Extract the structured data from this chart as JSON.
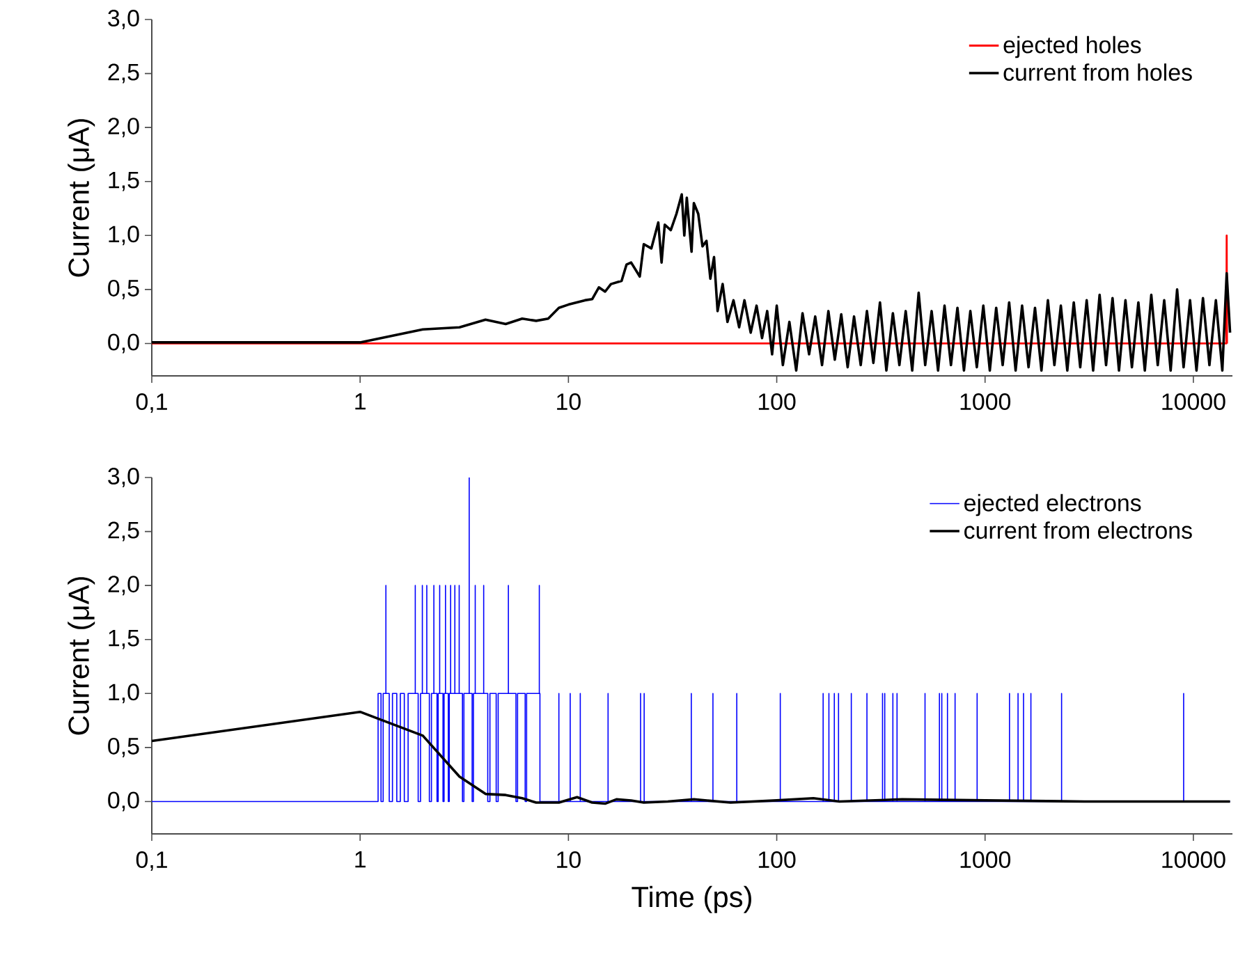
{
  "chart_data": [
    {
      "type": "line",
      "ylabel": "Current (μA)",
      "xlim": [
        0.1,
        15400
      ],
      "ylim": [
        -0.3,
        3.0
      ],
      "log": "x",
      "legend": "top right",
      "line_style": "solid",
      "xticks": [
        {
          "value": 0.1,
          "label": "0,1"
        },
        1,
        10,
        100,
        1000,
        10000
      ],
      "yticks": [
        {
          "value": 0,
          "label": "0,0"
        },
        {
          "value": 0.5,
          "label": "0,5"
        },
        {
          "value": 1,
          "label": "1,0"
        },
        {
          "value": 1.5,
          "label": "1,5"
        },
        {
          "value": 2,
          "label": "2,0"
        },
        {
          "value": 2.5,
          "label": "2,5"
        },
        {
          "value": 3,
          "label": "3,0"
        }
      ],
      "series": [
        {
          "name": "ejected holes",
          "color": "#ff0000",
          "x": [
            0.1,
            14400,
            14450,
            14500
          ],
          "values": [
            0,
            0,
            1.0,
            0
          ]
        },
        {
          "name": "current from holes",
          "color": "#000000",
          "x": [
            0.1,
            1,
            2,
            3,
            4,
            5,
            6,
            7,
            8,
            9,
            10,
            12,
            13,
            14,
            15,
            16,
            18,
            19,
            20,
            22,
            23,
            25,
            27,
            28,
            29,
            31,
            33,
            35,
            36,
            37,
            39,
            40,
            42,
            44,
            46,
            48,
            50,
            52,
            55,
            58,
            62,
            66,
            70,
            75,
            80,
            85,
            90,
            95,
            100,
            107,
            115,
            124,
            133,
            143,
            153,
            165,
            177,
            190,
            204,
            219,
            235,
            253,
            271,
            291,
            313,
            336,
            361,
            388,
            416,
            447,
            480,
            516,
            554,
            595,
            639,
            686,
            737,
            792,
            850,
            913,
            981,
            1054,
            1131,
            1215,
            1305,
            1402,
            1506,
            1617,
            1737,
            1865,
            2003,
            2152,
            2311,
            2482,
            2666,
            2863,
            3075,
            3303,
            3547,
            3810,
            4092,
            4394,
            4720,
            5069,
            5444,
            5847,
            6280,
            6745,
            7244,
            7780,
            8355,
            8974,
            9638,
            10351,
            11117,
            11940,
            12823,
            13772,
            14450,
            15000
          ],
          "values": [
            0.01,
            0.01,
            0.13,
            0.15,
            0.22,
            0.18,
            0.23,
            0.21,
            0.23,
            0.33,
            0.36,
            0.4,
            0.41,
            0.52,
            0.48,
            0.55,
            0.58,
            0.73,
            0.75,
            0.62,
            0.92,
            0.88,
            1.12,
            0.75,
            1.1,
            1.05,
            1.2,
            1.38,
            1.0,
            1.35,
            0.85,
            1.3,
            1.2,
            0.9,
            0.95,
            0.6,
            0.8,
            0.3,
            0.55,
            0.2,
            0.4,
            0.15,
            0.4,
            0.1,
            0.35,
            0.05,
            0.3,
            -0.1,
            0.35,
            -0.2,
            0.2,
            -0.25,
            0.28,
            -0.1,
            0.25,
            -0.2,
            0.3,
            -0.15,
            0.27,
            -0.22,
            0.25,
            -0.2,
            0.3,
            -0.18,
            0.38,
            -0.25,
            0.28,
            -0.2,
            0.3,
            -0.25,
            0.47,
            -0.2,
            0.3,
            -0.25,
            0.35,
            -0.2,
            0.33,
            -0.25,
            0.3,
            -0.22,
            0.35,
            -0.25,
            0.33,
            -0.2,
            0.38,
            -0.25,
            0.35,
            -0.22,
            0.33,
            -0.25,
            0.4,
            -0.2,
            0.35,
            -0.25,
            0.38,
            -0.22,
            0.4,
            -0.25,
            0.45,
            -0.2,
            0.42,
            -0.25,
            0.4,
            -0.22,
            0.38,
            -0.25,
            0.45,
            -0.2,
            0.4,
            -0.25,
            0.5,
            -0.22,
            0.4,
            -0.25,
            0.42,
            -0.2,
            0.4,
            -0.25,
            0.65,
            0.1
          ]
        }
      ]
    },
    {
      "type": "line",
      "ylabel": "Current (μA)",
      "xlabel": "Time (ps)",
      "xlim": [
        0.1,
        15400
      ],
      "ylim": [
        -0.3,
        3.0
      ],
      "log": "x",
      "legend": "top right",
      "line_style": "solid",
      "xticks": [
        {
          "value": 0.1,
          "label": "0,1"
        },
        1,
        10,
        100,
        1000,
        10000
      ],
      "yticks": [
        {
          "value": 0,
          "label": "0,0"
        },
        {
          "value": 0.5,
          "label": "0,5"
        },
        {
          "value": 1,
          "label": "1,0"
        },
        {
          "value": 1.5,
          "label": "1,5"
        },
        {
          "value": 2,
          "label": "2,0"
        },
        {
          "value": 2.5,
          "label": "2,5"
        },
        {
          "value": 3,
          "label": "3,0"
        }
      ],
      "series": [
        {
          "name": "ejected electrons",
          "color": "#0000ff",
          "x": [
            0.1,
            1.22,
            1.22,
            1.26,
            1.26,
            1.29,
            1.29,
            1.33,
            1.33,
            1.33,
            1.38,
            1.38,
            1.43,
            1.43,
            1.5,
            1.5,
            1.56,
            1.56,
            1.63,
            1.63,
            1.7,
            1.7,
            1.84,
            1.84,
            1.84,
            1.9,
            1.9,
            1.95,
            1.95,
            1.99,
            1.99,
            1.99,
            2.09,
            2.09,
            2.09,
            2.15,
            2.15,
            2.2,
            2.2,
            2.26,
            2.26,
            2.26,
            2.34,
            2.34,
            2.37,
            2.37,
            2.41,
            2.41,
            2.41,
            2.5,
            2.5,
            2.53,
            2.53,
            2.57,
            2.57,
            2.57,
            2.65,
            2.65,
            2.68,
            2.68,
            2.72,
            2.72,
            2.72,
            2.85,
            2.85,
            2.85,
            2.99,
            2.99,
            2.99,
            3.1,
            3.1,
            3.15,
            3.15,
            3.34,
            3.34,
            3.34,
            3.45,
            3.45,
            3.5,
            3.5,
            3.57,
            3.57,
            3.57,
            3.92,
            3.92,
            3.92,
            4.1,
            4.1,
            4.2,
            4.2,
            4.5,
            4.5,
            4.6,
            4.6,
            5.15,
            5.15,
            5.15,
            5.6,
            5.6,
            5.7,
            5.7,
            6.2,
            6.2,
            6.3,
            6.3,
            7.25,
            7.25,
            7.25,
            7.3,
            7.3,
            9.0,
            9.0,
            9.0,
            10.2,
            10.2,
            10.2,
            11.4,
            11.4,
            11.4,
            15.5,
            15.5,
            15.5,
            22.2,
            22.2,
            22.2,
            23.1,
            23.1,
            23.1,
            38.9,
            38.9,
            38.9,
            49.4,
            49.4,
            49.4,
            64.3,
            64.3,
            64.3,
            104,
            104,
            104,
            167,
            167,
            167,
            178,
            178,
            178,
            189,
            189,
            189,
            198,
            198,
            198,
            228,
            228,
            228,
            271,
            271,
            271,
            322,
            322,
            322,
            330,
            330,
            330,
            361,
            361,
            361,
            378,
            378,
            378,
            515,
            515,
            515,
            604,
            604,
            604,
            620,
            620,
            620,
            660,
            660,
            660,
            718,
            718,
            718,
            916,
            916,
            916,
            1310,
            1310,
            1310,
            1440,
            1440,
            1440,
            1530,
            1530,
            1530,
            1660,
            1660,
            1660,
            2330,
            2330,
            2330,
            8980,
            8980,
            8980,
            15000
          ],
          "values": [
            0,
            0,
            1,
            1,
            0,
            0,
            1,
            1,
            2,
            1,
            1,
            0,
            0,
            1,
            1,
            0,
            0,
            1,
            1,
            0,
            0,
            1,
            1,
            2,
            1,
            1,
            0,
            0,
            1,
            1,
            2,
            1,
            1,
            2,
            1,
            1,
            0,
            0,
            1,
            1,
            2,
            1,
            1,
            0,
            0,
            1,
            1,
            2,
            1,
            1,
            0,
            0,
            1,
            1,
            2,
            1,
            1,
            0,
            0,
            1,
            1,
            2,
            1,
            1,
            2,
            1,
            1,
            2,
            1,
            1,
            0,
            0,
            1,
            1,
            3,
            1,
            1,
            0,
            0,
            1,
            1,
            2,
            1,
            1,
            2,
            1,
            1,
            0,
            0,
            1,
            1,
            0,
            0,
            1,
            1,
            2,
            1,
            1,
            0,
            0,
            1,
            1,
            0,
            0,
            1,
            1,
            2,
            1,
            1,
            0,
            0,
            1,
            0,
            0,
            1,
            0,
            0,
            1,
            0,
            0,
            1,
            0,
            0,
            1,
            0,
            0,
            1,
            0,
            0,
            1,
            0,
            0,
            1,
            0,
            0,
            1,
            0,
            0,
            1,
            0,
            0,
            1,
            0,
            0,
            1,
            0,
            0,
            1,
            0,
            0,
            1,
            0,
            0,
            1,
            0,
            0,
            1,
            0,
            0,
            1,
            0,
            0,
            1,
            0,
            0,
            1,
            0,
            0,
            1,
            0,
            0,
            1,
            0,
            0,
            1,
            0,
            0,
            1,
            0,
            0,
            1,
            0,
            0,
            1,
            0,
            0,
            1,
            0,
            0,
            1,
            0,
            0,
            1,
            0,
            0,
            1,
            0,
            0,
            1,
            0,
            0,
            1,
            0,
            0,
            1,
            0,
            0
          ]
        },
        {
          "name": "current from electrons",
          "color": "#000000",
          "x": [
            0.1,
            1,
            2,
            3,
            4,
            5,
            6,
            7,
            9,
            11,
            13,
            15,
            17,
            20,
            23,
            30,
            40,
            60,
            100,
            150,
            200,
            400,
            1000,
            3000,
            15000
          ],
          "values": [
            0.56,
            0.83,
            0.61,
            0.23,
            0.07,
            0.06,
            0.03,
            -0.01,
            -0.01,
            0.04,
            -0.01,
            -0.02,
            0.02,
            0.01,
            -0.01,
            0.0,
            0.02,
            -0.01,
            0.01,
            0.03,
            0.0,
            0.02,
            0.01,
            0.0,
            0.0
          ]
        }
      ]
    }
  ]
}
